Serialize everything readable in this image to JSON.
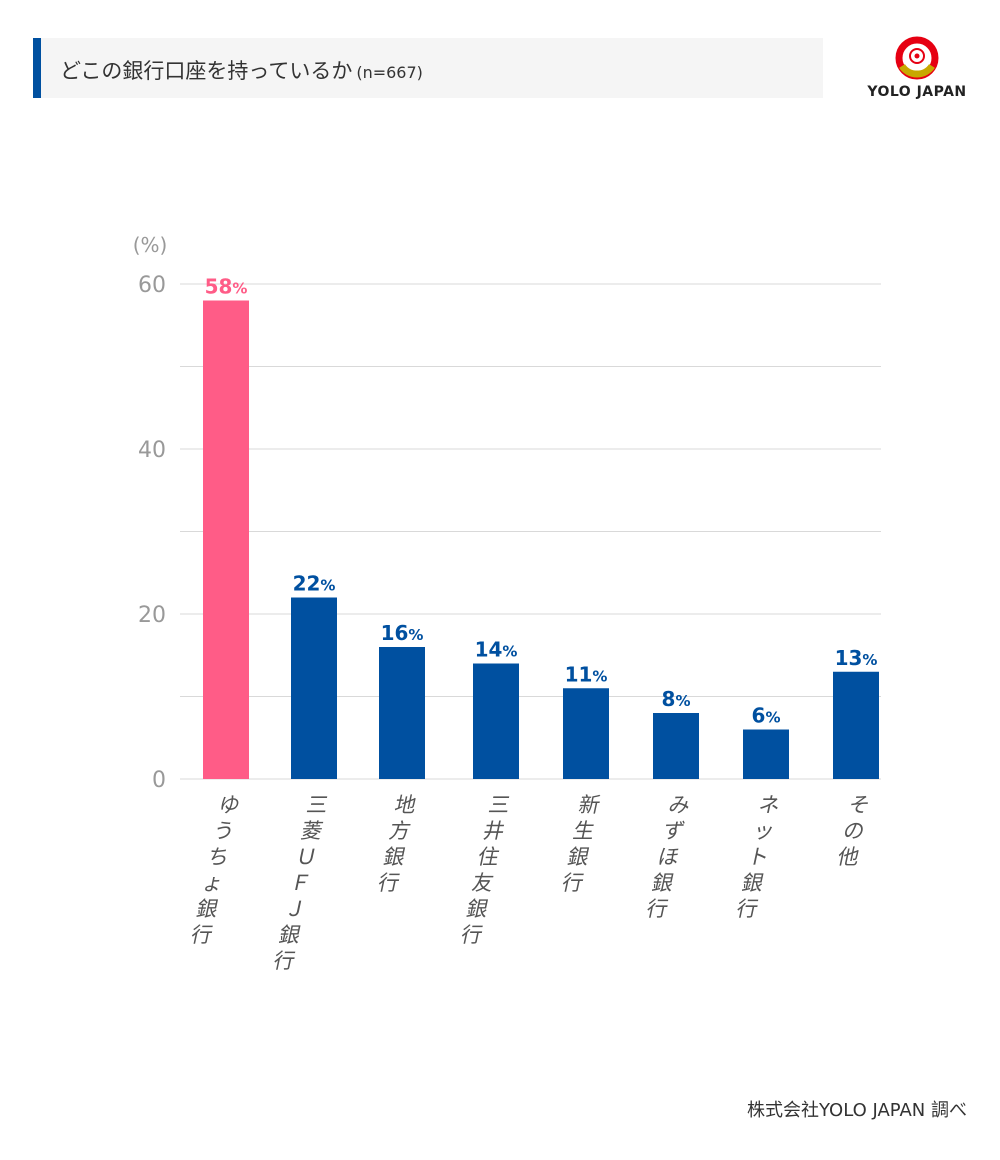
{
  "header": {
    "title": "どこの銀行口座を持っているか",
    "sample": "(n=667)"
  },
  "logo": {
    "text": "YOLO JAPAN",
    "colors": {
      "red": "#e60012",
      "gold": "#c8a800"
    }
  },
  "footer": {
    "source": "株式会社YOLO JAPAN 調べ"
  },
  "chart_data": {
    "type": "bar",
    "unit_label": "(%)",
    "ylim": [
      0,
      60
    ],
    "yticks": [
      0,
      20,
      40,
      60
    ],
    "grid": true,
    "categories": [
      "ゆうちょ銀行",
      "三菱ＵＦＪ銀行",
      "地方銀行",
      "三井住友銀行",
      "新生銀行",
      "みずほ銀行",
      "ネット銀行",
      "その他"
    ],
    "values": [
      58,
      22,
      16,
      14,
      11,
      8,
      6,
      13
    ],
    "value_labels": [
      "58%",
      "22%",
      "16%",
      "14%",
      "11%",
      "8%",
      "6%",
      "13%"
    ],
    "highlight_index": 0,
    "colors": {
      "highlight": "#ff5c87",
      "bar": "#0050a0",
      "grid": "#d9d9d9",
      "tick": "#999999",
      "category": "#555555"
    }
  }
}
